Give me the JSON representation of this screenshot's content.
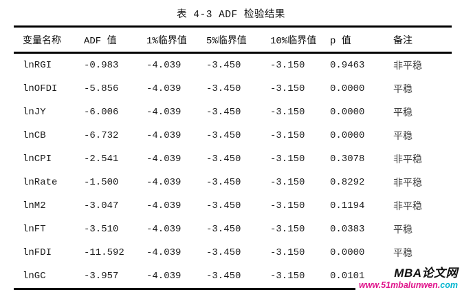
{
  "page": {
    "title": "表 4-3 ADF 检验结果"
  },
  "table": {
    "column_keys": [
      "variable",
      "adf-value",
      "crit-1pct",
      "crit-5pct",
      "crit-10pct",
      "p-value",
      "remark"
    ],
    "headers": [
      "变量名称",
      "ADF 值",
      "1%临界值",
      "5%临界值",
      "10%临界值",
      "p 值",
      "备注"
    ],
    "rows": [
      [
        "lnRGI",
        "-0.983",
        "-4.039",
        "-3.450",
        "-3.150",
        "0.9463",
        "非平稳"
      ],
      [
        "lnOFDI",
        "-5.856",
        "-4.039",
        "-3.450",
        "-3.150",
        "0.0000",
        "平稳"
      ],
      [
        "lnJY",
        "-6.006",
        "-4.039",
        "-3.450",
        "-3.150",
        "0.0000",
        "平稳"
      ],
      [
        "lnCB",
        "-6.732",
        "-4.039",
        "-3.450",
        "-3.150",
        "0.0000",
        "平稳"
      ],
      [
        "lnCPI",
        "-2.541",
        "-4.039",
        "-3.450",
        "-3.150",
        "0.3078",
        "非平稳"
      ],
      [
        "lnRate",
        "-1.500",
        "-4.039",
        "-3.450",
        "-3.150",
        "0.8292",
        "非平稳"
      ],
      [
        "lnM2",
        "-3.047",
        "-4.039",
        "-3.450",
        "-3.150",
        "0.1194",
        "非平稳"
      ],
      [
        "lnFT",
        "-3.510",
        "-4.039",
        "-3.450",
        "-3.150",
        "0.0383",
        "平稳"
      ],
      [
        "lnFDI",
        "-11.592",
        "-4.039",
        "-3.450",
        "-3.150",
        "0.0000",
        "平稳"
      ],
      [
        "lnGC",
        "-3.957",
        "-4.039",
        "-3.450",
        "-3.150",
        "0.0101",
        "平稳"
      ]
    ]
  },
  "watermark": {
    "site_name": "MBA论文网",
    "url_prefix": "www.51mbalunwen.",
    "url_suffix": "com",
    "colors": {
      "site_name": "#101010",
      "url_prefix": "#e0168c",
      "url_suffix": "#00b4cf"
    }
  }
}
